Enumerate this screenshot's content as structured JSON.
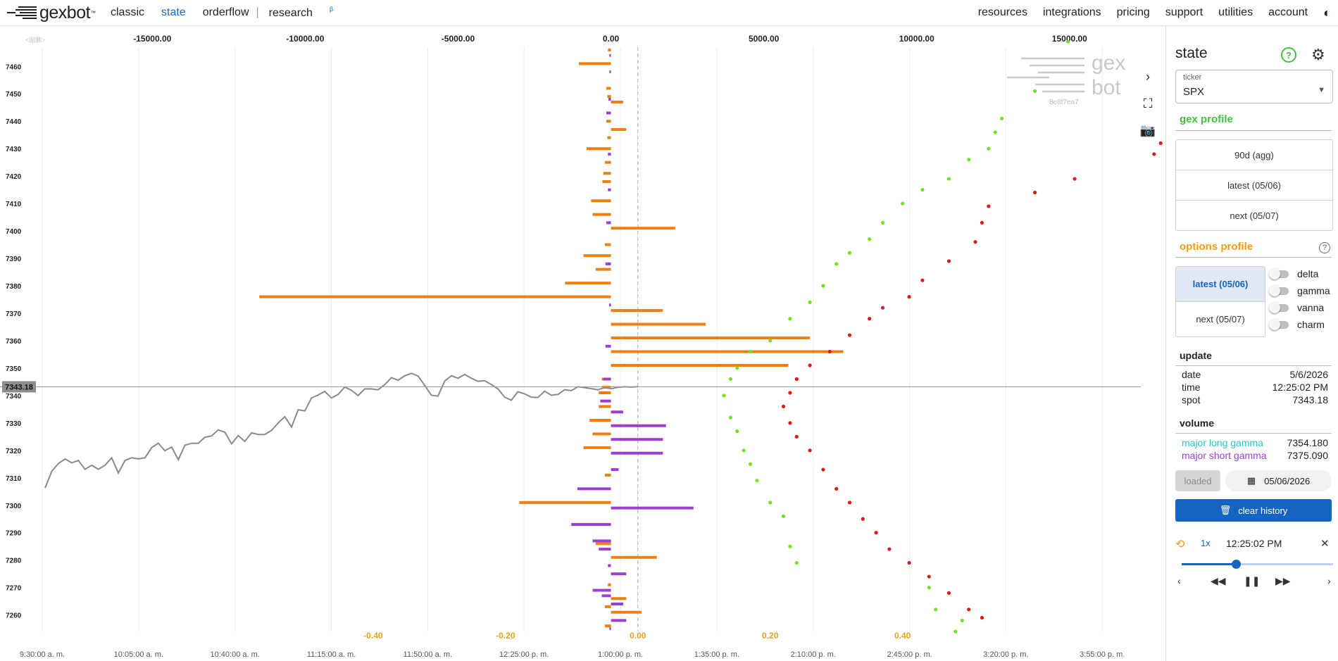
{
  "nav": {
    "logo": "gexbot",
    "logo_tm": "™",
    "left": [
      "classic",
      "state",
      "orderflow",
      "research"
    ],
    "separator": "|",
    "research_sup": "β",
    "right": [
      "resources",
      "integrations",
      "pricing",
      "support",
      "utilities",
      "account"
    ],
    "theme_icon": "◐"
  },
  "colors": {
    "accent": "#1565c0",
    "orange": "#f07f13",
    "purple": "#9c3fd0",
    "green": "#71e21f",
    "red": "#e11818",
    "price": "#8a8a8a"
  },
  "chart_data": {
    "type": "scatter",
    "y_axis": {
      "range": [
        7254,
        7467
      ],
      "ticks": [
        7460,
        7450,
        7440,
        7430,
        7420,
        7410,
        7400,
        7390,
        7380,
        7370,
        7360,
        7350,
        7340,
        7330,
        7320,
        7310,
        7300,
        7290,
        7280,
        7270,
        7260
      ]
    },
    "top_axis": {
      "range": [
        -18600,
        17330
      ],
      "ticks": [
        -15000,
        -10000,
        -5000,
        0,
        5000,
        10000,
        15000
      ],
      "tick_labels": [
        "-15000.00",
        "-10000.00",
        "-5000.00",
        "0.00",
        "5000.00",
        "10000.00",
        "15000.00"
      ]
    },
    "bottom_axis": {
      "range": [
        -0.9,
        0.76
      ],
      "ticks": [
        -0.4,
        -0.2,
        0.0,
        0.2,
        0.4
      ],
      "tick_labels": [
        "-0.40",
        "-0.20",
        "0.00",
        "0.20",
        "0.40"
      ]
    },
    "time_axis": {
      "labels": [
        "9:30:00 a. m.",
        "10:05:00 a. m.",
        "10:40:00 a. m.",
        "11:15:00 a. m.",
        "11:50:00 a. m.",
        "12:25:00 p. m.",
        "1:00:00 p. m.",
        "1:35:00 p. m.",
        "2:10:00 p. m.",
        "2:45:00 p. m.",
        "3:20:00 p. m.",
        "3:55:00 p. m."
      ]
    },
    "spot_label": "7343.18",
    "spot": 7343.18,
    "current_time_fraction": 0.0,
    "watermark": {
      "top": "gex",
      "bottom": "bot",
      "id": "8e8f7ea7"
    },
    "scroll_hint": "◁||||||▷",
    "orange_bars": [
      [
        7466,
        -100
      ],
      [
        7461,
        -1050
      ],
      [
        7452,
        -150
      ],
      [
        7449,
        -120
      ],
      [
        7447,
        400
      ],
      [
        7440,
        -150
      ],
      [
        7437,
        500
      ],
      [
        7434,
        -120
      ],
      [
        7430,
        -800
      ],
      [
        7425,
        -200
      ],
      [
        7421,
        -250
      ],
      [
        7418,
        -280
      ],
      [
        7411,
        -650
      ],
      [
        7406,
        -600
      ],
      [
        7401,
        2100
      ],
      [
        7395,
        -200
      ],
      [
        7391,
        -900
      ],
      [
        7386,
        -500
      ],
      [
        7381,
        -1500
      ],
      [
        7376,
        -11500
      ],
      [
        7371,
        1700
      ],
      [
        7366,
        3100
      ],
      [
        7361,
        6500
      ],
      [
        7356,
        7600
      ],
      [
        7351,
        5800
      ],
      [
        7346,
        -300
      ],
      [
        7343,
        -300
      ],
      [
        7341,
        -400
      ],
      [
        7336,
        -400
      ],
      [
        7331,
        -700
      ],
      [
        7326,
        -600
      ],
      [
        7321,
        -900
      ],
      [
        7311,
        -200
      ],
      [
        7301,
        -3000
      ],
      [
        7286,
        -500
      ],
      [
        7281,
        1500
      ],
      [
        7271,
        -100
      ],
      [
        7266,
        500
      ],
      [
        7263,
        -200
      ],
      [
        7261,
        1000
      ],
      [
        7256,
        -200
      ]
    ],
    "purple_bars": [
      [
        7464,
        -50
      ],
      [
        7458,
        -50
      ],
      [
        7448,
        -80
      ],
      [
        7443,
        -150
      ],
      [
        7428,
        -100
      ],
      [
        7415,
        -100
      ],
      [
        7403,
        -150
      ],
      [
        7388,
        -180
      ],
      [
        7373,
        -60
      ],
      [
        7358,
        -180
      ],
      [
        7346,
        -250
      ],
      [
        7338,
        -350
      ],
      [
        7334,
        400
      ],
      [
        7329,
        1800
      ],
      [
        7324,
        1700
      ],
      [
        7319,
        1700
      ],
      [
        7313,
        250
      ],
      [
        7306,
        -1100
      ],
      [
        7299,
        2700
      ],
      [
        7293,
        -1300
      ],
      [
        7287,
        -600
      ],
      [
        7284,
        -400
      ],
      [
        7278,
        -100
      ],
      [
        7275,
        500
      ],
      [
        7269,
        -600
      ],
      [
        7267,
        -300
      ],
      [
        7264,
        400
      ],
      [
        7258,
        500
      ],
      [
        7255,
        -50
      ]
    ],
    "price_series": [
      7306.3,
      7312.4,
      7315.2,
      7316.9,
      7315.5,
      7316.3,
      7313.1,
      7314.6,
      7313.1,
      7314.6,
      7317.3,
      7311.8,
      7316.3,
      7317.3,
      7316.9,
      7317.3,
      7321.0,
      7322.6,
      7319.9,
      7321.2,
      7316.6,
      7321.9,
      7322.6,
      7322.6,
      7324.8,
      7325.3,
      7327.5,
      7326.6,
      7322.4,
      7325.4,
      7323.3,
      7326.4,
      7325.8,
      7325.8,
      7327.3,
      7330.0,
      7332.3,
      7328.5,
      7334.8,
      7334.4,
      7339.1,
      7340.2,
      7341.5,
      7339.1,
      7340.4,
      7343.1,
      7341.9,
      7340.0,
      7342.4,
      7342.4,
      7342.1,
      7344.0,
      7346.5,
      7345.6,
      7347.2,
      7348.1,
      7347.1,
      7343.7,
      7340.1,
      7339.8,
      7345.3,
      7347.2,
      7346.3,
      7347.7,
      7346.3,
      7345.2,
      7345.4,
      7344.0,
      7342.4,
      7339.4,
      7338.3,
      7341.4,
      7340.6,
      7339.4,
      7339.3,
      7341.6,
      7340.1,
      7340.4,
      7342.1,
      7341.8,
      7343.2,
      7342.9,
      7342.5,
      7342.1,
      7342.9,
      7342.5,
      7343.0,
      7343.2,
      7343.1,
      7343.2
    ],
    "green_points": [
      [
        0.65,
        7469
      ],
      [
        0.6,
        7451
      ],
      [
        0.55,
        7441
      ],
      [
        0.54,
        7436
      ],
      [
        0.53,
        7430
      ],
      [
        0.5,
        7426
      ],
      [
        0.47,
        7419
      ],
      [
        0.43,
        7415
      ],
      [
        0.4,
        7410
      ],
      [
        0.37,
        7403
      ],
      [
        0.35,
        7397
      ],
      [
        0.32,
        7392
      ],
      [
        0.3,
        7388
      ],
      [
        0.28,
        7380
      ],
      [
        0.26,
        7374
      ],
      [
        0.23,
        7368
      ],
      [
        0.2,
        7360
      ],
      [
        0.17,
        7356
      ],
      [
        0.15,
        7350
      ],
      [
        0.14,
        7346
      ],
      [
        0.13,
        7340
      ],
      [
        0.14,
        7332
      ],
      [
        0.15,
        7327
      ],
      [
        0.16,
        7320
      ],
      [
        0.17,
        7315
      ],
      [
        0.18,
        7309
      ],
      [
        0.2,
        7301
      ],
      [
        0.22,
        7296
      ],
      [
        0.23,
        7285
      ],
      [
        0.24,
        7279
      ],
      [
        0.44,
        7270
      ],
      [
        0.45,
        7262
      ],
      [
        0.49,
        7258
      ],
      [
        0.48,
        7254
      ]
    ],
    "red_points": [
      [
        0.95,
        7467
      ],
      [
        0.91,
        7450
      ],
      [
        0.85,
        7442
      ],
      [
        0.8,
        7438
      ],
      [
        0.79,
        7432
      ],
      [
        0.78,
        7428
      ],
      [
        0.66,
        7419
      ],
      [
        0.6,
        7414
      ],
      [
        0.53,
        7409
      ],
      [
        0.52,
        7403
      ],
      [
        0.51,
        7396
      ],
      [
        0.47,
        7389
      ],
      [
        0.43,
        7382
      ],
      [
        0.41,
        7376
      ],
      [
        0.37,
        7372
      ],
      [
        0.35,
        7368
      ],
      [
        0.32,
        7362
      ],
      [
        0.29,
        7356
      ],
      [
        0.26,
        7351
      ],
      [
        0.24,
        7346
      ],
      [
        0.23,
        7341
      ],
      [
        0.22,
        7336
      ],
      [
        0.23,
        7330
      ],
      [
        0.24,
        7325
      ],
      [
        0.26,
        7320
      ],
      [
        0.28,
        7313
      ],
      [
        0.3,
        7306
      ],
      [
        0.32,
        7301
      ],
      [
        0.34,
        7295
      ],
      [
        0.36,
        7290
      ],
      [
        0.38,
        7284
      ],
      [
        0.41,
        7279
      ],
      [
        0.44,
        7274
      ],
      [
        0.47,
        7268
      ],
      [
        0.5,
        7262
      ],
      [
        0.52,
        7259
      ]
    ]
  },
  "panel": {
    "title": "state",
    "help": "?",
    "settings_icon": "⚙",
    "ticker_label": "ticker",
    "ticker_value": "SPX",
    "ticker_caret": "▼",
    "gex_profile": {
      "title": "gex profile",
      "buttons": [
        "90d (agg)",
        "latest (05/06)",
        "next (05/07)"
      ]
    },
    "options_profile": {
      "title": "options profile",
      "help": "?",
      "buttons": [
        "latest (05/06)",
        "next (05/07)"
      ],
      "toggles": [
        "delta",
        "gamma",
        "vanna",
        "charm"
      ]
    },
    "update": {
      "title": "update",
      "date_label": "date",
      "date": "5/6/2026",
      "time_label": "time",
      "time": "12:25:02 PM",
      "spot_label": "spot",
      "spot": "7343.18"
    },
    "volume": {
      "title": "volume",
      "long_label": "major long gamma",
      "long_value": "7354.180",
      "short_label": "major short gamma",
      "short_value": "7375.090"
    },
    "loaded": "loaded",
    "date_picker": "05/06/2026",
    "calendar_icon": "▦",
    "clear_history": "clear history",
    "trash_icon": "🗑",
    "playback": {
      "history_icon": "⟲",
      "speed": "1x",
      "time": "12:25:02 PM",
      "close": "✕",
      "progress": 0.36,
      "controls": [
        "‹",
        "◀◀",
        "❚❚",
        "▶▶",
        "›"
      ]
    }
  },
  "chart_tools": {
    "collapse": "›",
    "fullscreen": "⛶",
    "camera": "📷"
  }
}
